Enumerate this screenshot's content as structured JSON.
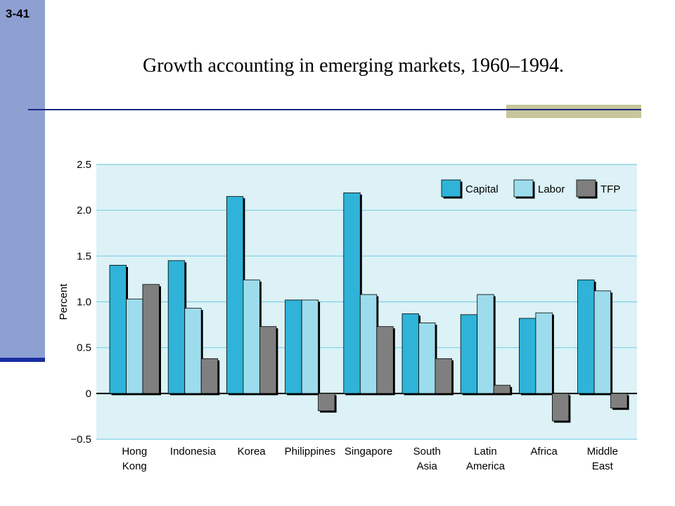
{
  "slide": {
    "number": "3-41",
    "title": "Growth accounting in emerging markets, 1960–1994."
  },
  "colors": {
    "capital": "#2fb3d8",
    "labor": "#9ddcec",
    "tfp": "#7f7f7f",
    "plot_background": "#dcf2f6",
    "gridline": "#7fcfe6",
    "sidebar": "#8e9fd2",
    "rule": "#1a2a8a",
    "rule_block": "#c8c69a"
  },
  "chart_data": {
    "type": "bar",
    "title": "",
    "xlabel": "",
    "ylabel": "Percent",
    "ylim": [
      -0.5,
      2.5
    ],
    "yticks": [
      2.5,
      2.0,
      1.5,
      1.0,
      0.5,
      0,
      -0.5
    ],
    "ytick_labels": [
      "2.5",
      "2.0",
      "1.5",
      "1.0",
      "0.5",
      "0",
      "−0.5"
    ],
    "grid": true,
    "legend_position": "top-right",
    "categories": [
      "Hong Kong",
      "Indonesia",
      "Korea",
      "Philippines",
      "Singapore",
      "South Asia",
      "Latin America",
      "Africa",
      "Middle East"
    ],
    "category_label_lines": [
      [
        "Hong",
        "Kong"
      ],
      [
        "Indonesia"
      ],
      [
        "Korea"
      ],
      [
        "Philippines"
      ],
      [
        "Singapore"
      ],
      [
        "South",
        "Asia"
      ],
      [
        "Latin",
        "America"
      ],
      [
        "Africa"
      ],
      [
        "Middle",
        "East"
      ]
    ],
    "series": [
      {
        "name": "Capital",
        "values": [
          1.4,
          1.45,
          2.15,
          1.02,
          2.19,
          0.87,
          0.86,
          0.82,
          1.24
        ]
      },
      {
        "name": "Labor",
        "values": [
          1.03,
          0.93,
          1.24,
          1.02,
          1.08,
          0.77,
          1.08,
          0.88,
          1.12
        ]
      },
      {
        "name": "TFP",
        "values": [
          1.19,
          0.38,
          0.73,
          -0.19,
          0.73,
          0.38,
          0.09,
          -0.3,
          -0.16
        ]
      }
    ]
  }
}
